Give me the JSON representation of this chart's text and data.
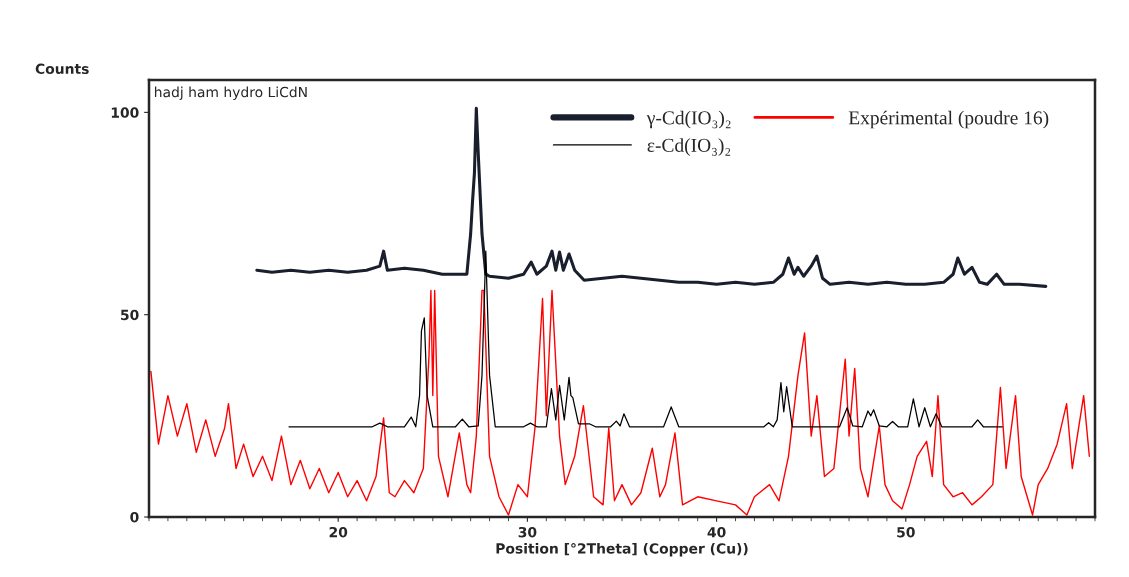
{
  "chart_data": {
    "type": "line",
    "xlabel": "Position [°2Theta] (Copper (Cu))",
    "ylabel": "Counts",
    "annotations": [
      "hadj ham hydro LiCdN"
    ],
    "xlim": [
      10,
      60
    ],
    "ylim": [
      0,
      108
    ],
    "xticks": [
      20,
      30,
      40,
      50
    ],
    "yticks": [
      0,
      50,
      100
    ],
    "grid": false,
    "legend": "top right",
    "marker": "none",
    "line_style": "solid",
    "series": [
      {
        "name": "γ-Cd(IO₃)₂",
        "color": "#1a1f2e",
        "x": [
          15.7,
          16.5,
          17.5,
          18.5,
          19.5,
          20.5,
          21.5,
          22.2,
          22.4,
          22.6,
          23.5,
          24.5,
          25.5,
          26.5,
          26.8,
          27.0,
          27.1,
          27.2,
          27.3,
          27.4,
          27.6,
          27.8,
          28.0,
          29.0,
          29.8,
          30.2,
          30.5,
          31.0,
          31.3,
          31.5,
          31.7,
          31.9,
          32.2,
          32.5,
          33.0,
          34.0,
          35.0,
          36.0,
          37.0,
          38.0,
          39.0,
          40.0,
          41.0,
          42.0,
          43.0,
          43.5,
          43.8,
          44.1,
          44.3,
          44.6,
          45.0,
          45.3,
          45.6,
          46.0,
          47.0,
          48.0,
          49.0,
          50.0,
          51.0,
          52.0,
          52.5,
          52.75,
          53.1,
          53.5,
          53.9,
          54.3,
          54.8,
          55.2,
          56.0,
          57.4
        ],
        "values": [
          61,
          60.5,
          61,
          60.5,
          61,
          60.5,
          61,
          62,
          65.7,
          61,
          61.5,
          61,
          60,
          60,
          60,
          70,
          78,
          85,
          101,
          90,
          70,
          60,
          59.5,
          59,
          60,
          63,
          60,
          62,
          65.7,
          61,
          65.5,
          61,
          65,
          61,
          58.5,
          59,
          59.5,
          59,
          58.5,
          58,
          58,
          57.5,
          58,
          57.5,
          58,
          60,
          64,
          60,
          61.7,
          59.5,
          62,
          64.5,
          59,
          57.5,
          58,
          57.5,
          58,
          57.5,
          57.5,
          58,
          60,
          64,
          60,
          61.7,
          58,
          57.5,
          60,
          57.5,
          57.5,
          57
        ]
      },
      {
        "name": "ε-Cd(IO₃)₂",
        "color": "#000000",
        "x": [
          17.4,
          20.0,
          21.8,
          22.2,
          22.6,
          23.5,
          23.86,
          24.1,
          24.3,
          24.4,
          24.55,
          24.7,
          25.0,
          26.2,
          26.56,
          26.9,
          27.4,
          27.6,
          27.8,
          28.0,
          28.3,
          29.8,
          30.16,
          30.5,
          31.0,
          31.27,
          31.5,
          31.7,
          31.95,
          32.2,
          32.3,
          32.4,
          32.7,
          33.3,
          33.6,
          34.4,
          34.7,
          34.9,
          35.1,
          35.4,
          37.2,
          37.6,
          38.0,
          42.5,
          42.75,
          43.0,
          43.2,
          43.4,
          43.55,
          43.7,
          44.0,
          46.5,
          46.9,
          47.2,
          47.7,
          48.0,
          48.15,
          48.3,
          48.6,
          49.0,
          49.3,
          49.6,
          50.1,
          50.4,
          50.7,
          51.0,
          51.3,
          51.6,
          51.9,
          53.5,
          53.8,
          54.1,
          55.1
        ],
        "values": [
          22.3,
          22.3,
          22.3,
          23.2,
          22.3,
          22.3,
          24.7,
          22.3,
          30,
          46,
          49.2,
          30,
          22.3,
          22.3,
          24.2,
          22.3,
          22.5,
          35,
          65.7,
          35,
          22.3,
          22.3,
          23.2,
          22.3,
          22.3,
          31.7,
          24,
          32.5,
          24,
          34.5,
          30,
          29.5,
          23,
          23,
          22.3,
          22.3,
          23.7,
          22.5,
          25.5,
          22.3,
          22.3,
          27.2,
          22.3,
          22.3,
          23.3,
          22.3,
          24,
          33.2,
          26,
          32.2,
          22.3,
          22.3,
          27,
          22.5,
          22.3,
          26.2,
          25,
          26.5,
          22.5,
          22.3,
          23.6,
          22.3,
          22.3,
          29.2,
          22.3,
          27,
          22.3,
          25.5,
          22.3,
          22.3,
          24,
          22.3,
          22.3
        ]
      },
      {
        "name": "Expérimental (poudre 16)",
        "color": "#ff0000",
        "x": [
          10.1,
          10.5,
          11.0,
          11.5,
          12.0,
          12.5,
          13.0,
          13.5,
          14.0,
          14.2,
          14.6,
          15.0,
          15.5,
          16.0,
          16.5,
          17.0,
          17.5,
          18.0,
          18.5,
          19.0,
          19.5,
          20.0,
          20.5,
          21.0,
          21.5,
          22.0,
          22.4,
          22.7,
          23.0,
          23.5,
          24.0,
          24.5,
          24.8,
          24.9,
          25.0,
          25.1,
          25.3,
          25.8,
          26.4,
          26.8,
          27.0,
          27.3,
          27.6,
          27.7,
          28.0,
          28.5,
          29.0,
          29.5,
          30.0,
          30.4,
          30.8,
          31.0,
          31.3,
          31.7,
          32.0,
          32.5,
          32.96,
          33.5,
          34.0,
          34.3,
          34.6,
          35.0,
          35.5,
          36.0,
          36.6,
          37.0,
          37.3,
          37.8,
          38.2,
          39.0,
          40.0,
          41.0,
          41.6,
          42.0,
          42.8,
          43.3,
          43.8,
          44.3,
          44.65,
          45.0,
          45.3,
          45.7,
          46.2,
          46.8,
          47.0,
          47.3,
          47.6,
          48.0,
          48.6,
          48.9,
          49.3,
          49.8,
          50.2,
          50.6,
          51.1,
          51.4,
          51.7,
          52.0,
          52.5,
          53.0,
          53.5,
          54.0,
          54.6,
          55.0,
          55.3,
          55.8,
          56.1,
          56.7,
          57.0,
          57.5,
          58.0,
          58.5,
          58.8,
          59.4,
          59.7
        ],
        "values": [
          36,
          18,
          30,
          20,
          28,
          16,
          24,
          15,
          22,
          28,
          12,
          18,
          10,
          15,
          9,
          20,
          8,
          14,
          7,
          12,
          6,
          11,
          5,
          9,
          4,
          10,
          24.5,
          6,
          5,
          9,
          6,
          12,
          40,
          56,
          30,
          56,
          15,
          5,
          20.8,
          8,
          6,
          20,
          56,
          56,
          15,
          5,
          0.5,
          8,
          5,
          22,
          54,
          25,
          56,
          20,
          8,
          15,
          27.5,
          5,
          3,
          22,
          4,
          8,
          3,
          6,
          17,
          5,
          8,
          20.8,
          3,
          5,
          4,
          3,
          0.5,
          5,
          8,
          4,
          15,
          35,
          45.5,
          20,
          30,
          10,
          12,
          39,
          20,
          36.7,
          12,
          5,
          22.5,
          8,
          4,
          2,
          8,
          15,
          18.7,
          10,
          30,
          8,
          5,
          6,
          3,
          5,
          8,
          32,
          12,
          30,
          10,
          0.5,
          8,
          12,
          18,
          28,
          12,
          30,
          15
        ]
      }
    ]
  }
}
